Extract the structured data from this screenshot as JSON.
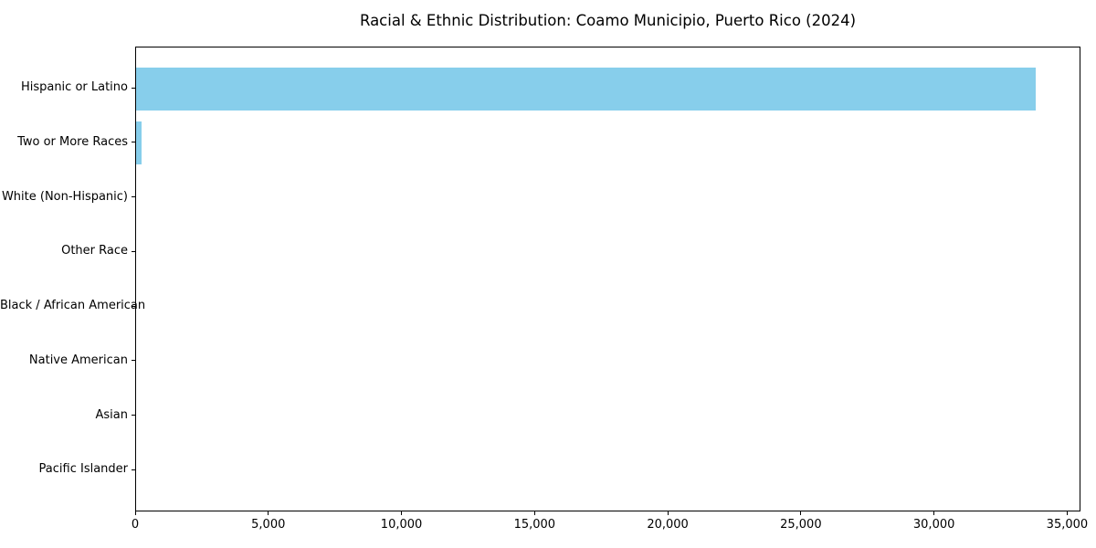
{
  "chart_data": {
    "type": "bar",
    "orientation": "horizontal",
    "title": "Racial & Ethnic Distribution: Coamo Municipio, Puerto Rico (2024)",
    "categories": [
      "Hispanic or Latino",
      "Two or More Races",
      "White (Non-Hispanic)",
      "Other Race",
      "Black / African American",
      "Native American",
      "Asian",
      "Pacific Islander"
    ],
    "values": [
      33800,
      200,
      0,
      0,
      0,
      0,
      0,
      0
    ],
    "bar_color": "#87CEEB",
    "axis_color": "#000000",
    "background_color": "#ffffff",
    "xlabel": "",
    "ylabel": "",
    "xlim": [
      0,
      35500
    ],
    "x_ticks": [
      0,
      5000,
      10000,
      15000,
      20000,
      25000,
      30000,
      35000
    ],
    "x_tick_labels": [
      "0",
      "5,000",
      "10,000",
      "15,000",
      "20,000",
      "25,000",
      "30,000",
      "35,000"
    ],
    "grid": false,
    "legend": null
  }
}
